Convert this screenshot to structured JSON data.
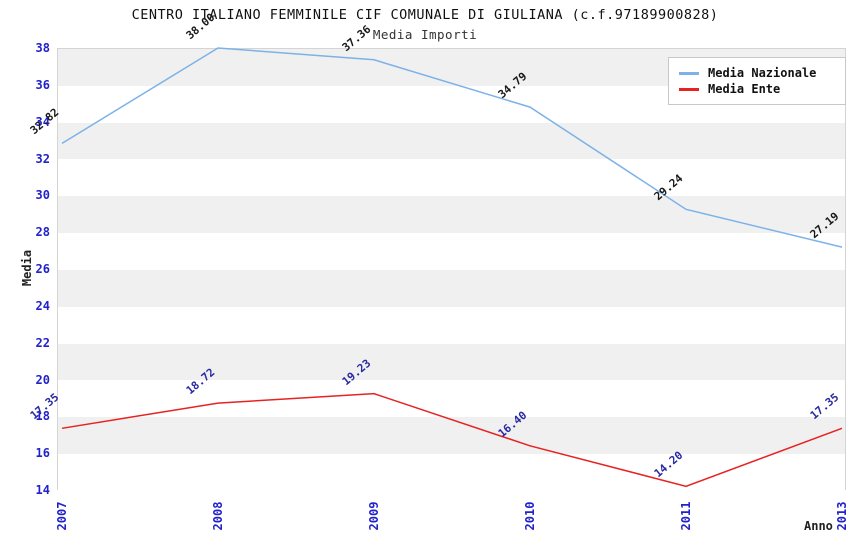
{
  "chart_data": {
    "type": "line",
    "title": "CENTRO ITALIANO FEMMINILE CIF COMUNALE DI GIULIANA (c.f.97189900828)",
    "subtitle": "Media Importi",
    "xlabel": "Anno",
    "ylabel": "Media",
    "x": [
      "2007",
      "2008",
      "2009",
      "2010",
      "2011",
      "2013"
    ],
    "ylim": [
      14,
      38
    ],
    "y_ticks": [
      14,
      16,
      18,
      20,
      22,
      24,
      26,
      28,
      30,
      32,
      34,
      36,
      38
    ],
    "grid": "horizontal-bands",
    "band_colors": [
      "#f0f0f0",
      "#ffffff"
    ],
    "legend_position": "top-right",
    "series": [
      {
        "name": "Media Nazionale",
        "color": "#7cb2e8",
        "label_color": "#1a1a1a",
        "values": [
          32.82,
          38.0,
          37.36,
          34.79,
          29.24,
          27.19
        ],
        "labels": [
          "32.82",
          "38.00",
          "37.36",
          "34.79",
          "29.24",
          "27.19"
        ]
      },
      {
        "name": "Media Ente",
        "color": "#e62222",
        "label_color": "#2929a3",
        "values": [
          17.35,
          18.72,
          19.23,
          16.4,
          14.2,
          17.35
        ],
        "labels": [
          "17.35",
          "18.72",
          "19.23",
          "16.40",
          "14.20",
          "17.35"
        ]
      }
    ],
    "tick_color": "#2222cc"
  }
}
